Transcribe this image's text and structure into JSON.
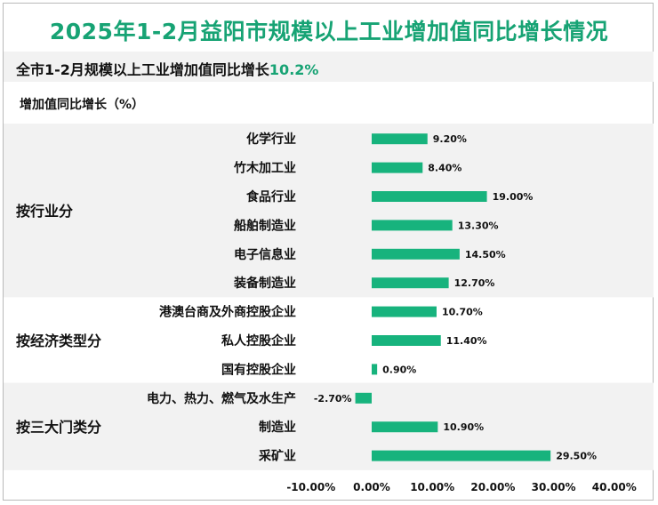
{
  "page": {
    "title": "2025年1-2月益阳市规模以上工业增加值同比增长情况",
    "subtitle_prefix": "全市1-2月规模以上工业增加值同比增长",
    "subtitle_value": "10.2%",
    "y_axis_title": "增加值同比增长（%）"
  },
  "colors": {
    "accent": "#17a374",
    "bar": "#17b37d",
    "band": "#f2f2f2"
  },
  "chart_data": {
    "type": "bar",
    "orientation": "horizontal",
    "title": "2025年1-2月益阳市规模以上工业增加值同比增长情况",
    "xlabel": "",
    "ylabel": "增加值同比增长（%）",
    "xlim": [
      -10,
      40
    ],
    "ticks": [
      -10,
      0,
      10,
      20,
      30,
      40
    ],
    "tick_labels": [
      "-10.00%",
      "0.00%",
      "10.00%",
      "20.00%",
      "30.00%",
      "40.00%"
    ],
    "groups": [
      {
        "name": "按行业分",
        "shaded": true,
        "items": [
          {
            "category": "化学行业",
            "value": 9.2,
            "label": "9.20%"
          },
          {
            "category": "竹木加工业",
            "value": 8.4,
            "label": "8.40%"
          },
          {
            "category": "食品行业",
            "value": 19.0,
            "label": "19.00%"
          },
          {
            "category": "船舶制造业",
            "value": 13.3,
            "label": "13.30%"
          },
          {
            "category": "电子信息业",
            "value": 14.5,
            "label": "14.50%"
          },
          {
            "category": "装备制造业",
            "value": 12.7,
            "label": "12.70%"
          }
        ]
      },
      {
        "name": "按经济类型分",
        "shaded": false,
        "items": [
          {
            "category": "港澳台商及外商控股企业",
            "value": 10.7,
            "label": "10.70%"
          },
          {
            "category": "私人控股企业",
            "value": 11.4,
            "label": "11.40%"
          },
          {
            "category": "国有控股企业",
            "value": 0.9,
            "label": "0.90%"
          }
        ]
      },
      {
        "name": "按三大门类分",
        "shaded": true,
        "items": [
          {
            "category": "电力、热力、燃气及水生产",
            "value": -2.7,
            "label": "-2.70%"
          },
          {
            "category": "制造业",
            "value": 10.9,
            "label": "10.90%"
          },
          {
            "category": "采矿业",
            "value": 29.5,
            "label": "29.50%"
          }
        ]
      }
    ]
  }
}
